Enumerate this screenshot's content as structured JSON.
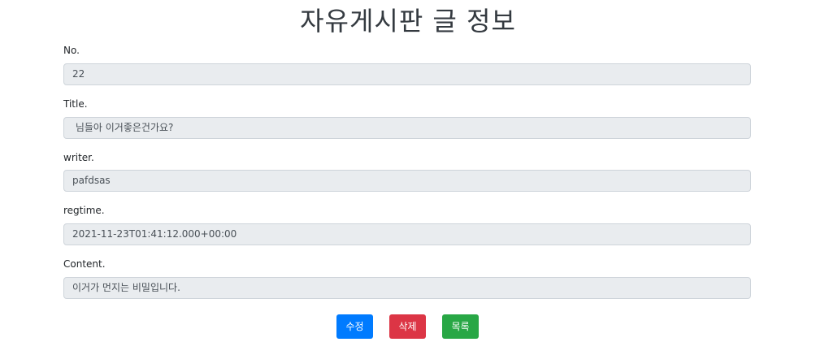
{
  "page": {
    "title": "자유게시판 글 정보"
  },
  "fields": {
    "no": {
      "label": "No.",
      "value": "22"
    },
    "title": {
      "label": "Title.",
      "value": " 님들아 이거좋은건가요?"
    },
    "writer": {
      "label": "writer.",
      "value": "pafdsas"
    },
    "regtime": {
      "label": "regtime.",
      "value": "2021-11-23T01:41:12.000+00:00"
    },
    "content": {
      "label": "Content.",
      "value": "이거가 먼지는 비밀입니다."
    }
  },
  "buttons": {
    "edit_label": "수정",
    "delete_label": "삭제",
    "list_label": "목록"
  },
  "colors": {
    "edit": "#007bff",
    "delete": "#dc3545",
    "list": "#28a745",
    "field_bg": "#e9ecef"
  }
}
